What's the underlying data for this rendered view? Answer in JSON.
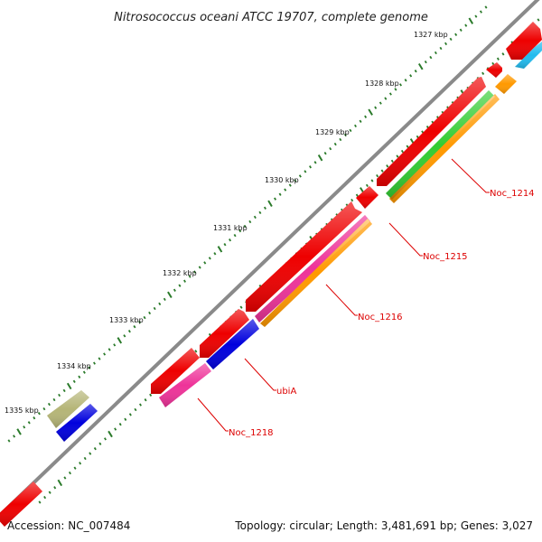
{
  "title": "Nitrosococcus oceani ATCC 19707, complete genome",
  "accession": "Accession: NC_007484",
  "summary": "Topology: circular; Length: 3,481,691 bp; Genes: 3,027",
  "scale_labels": [
    "1327 kbp",
    "1328 kbp",
    "1329 kbp",
    "1330 kbp",
    "1331 kbp",
    "1332 kbp",
    "1333 kbp",
    "1334 kbp",
    "1335 kbp"
  ],
  "gene_labels": [
    "Noc_1214",
    "Noc_1215",
    "Noc_1216",
    "ubiA",
    "Noc_1218"
  ],
  "colors": {
    "backbone": "#8a8a8a",
    "cds": "#ee0000",
    "label_line": "#dd0000",
    "scale_dots": "#2a7a2a",
    "green": "#33cc33",
    "orange": "#ff9900",
    "magenta": "#ee3399",
    "blue": "#0000dd",
    "cyan": "#22bbee",
    "olive": "#b5b577"
  }
}
